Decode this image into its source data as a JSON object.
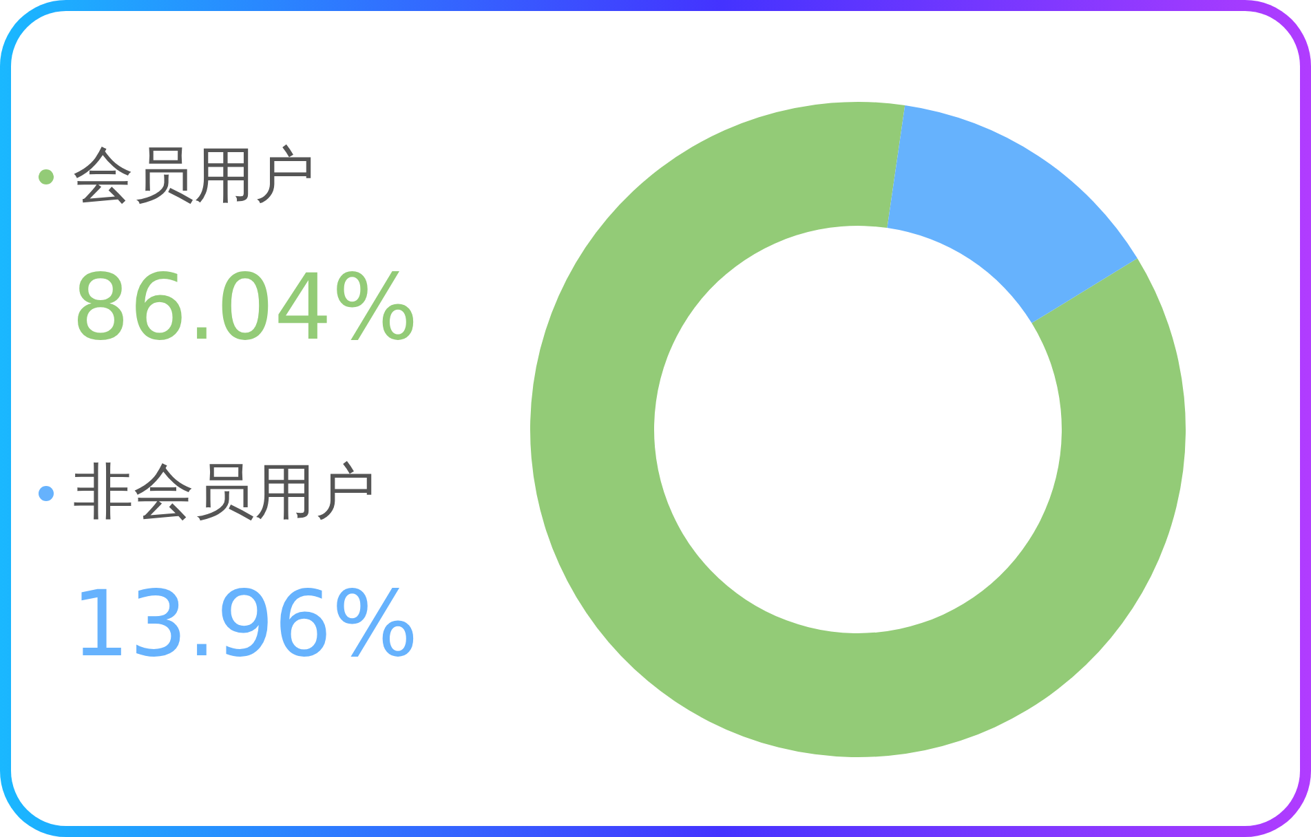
{
  "chart_data": {
    "type": "donut",
    "categories": [
      "会员用户",
      "非会员用户"
    ],
    "values": [
      86.04,
      13.96
    ],
    "value_labels": [
      "86.04%",
      "13.96%"
    ],
    "colors": [
      "#93cb77",
      "#66b2fd"
    ],
    "legend": "left"
  }
}
